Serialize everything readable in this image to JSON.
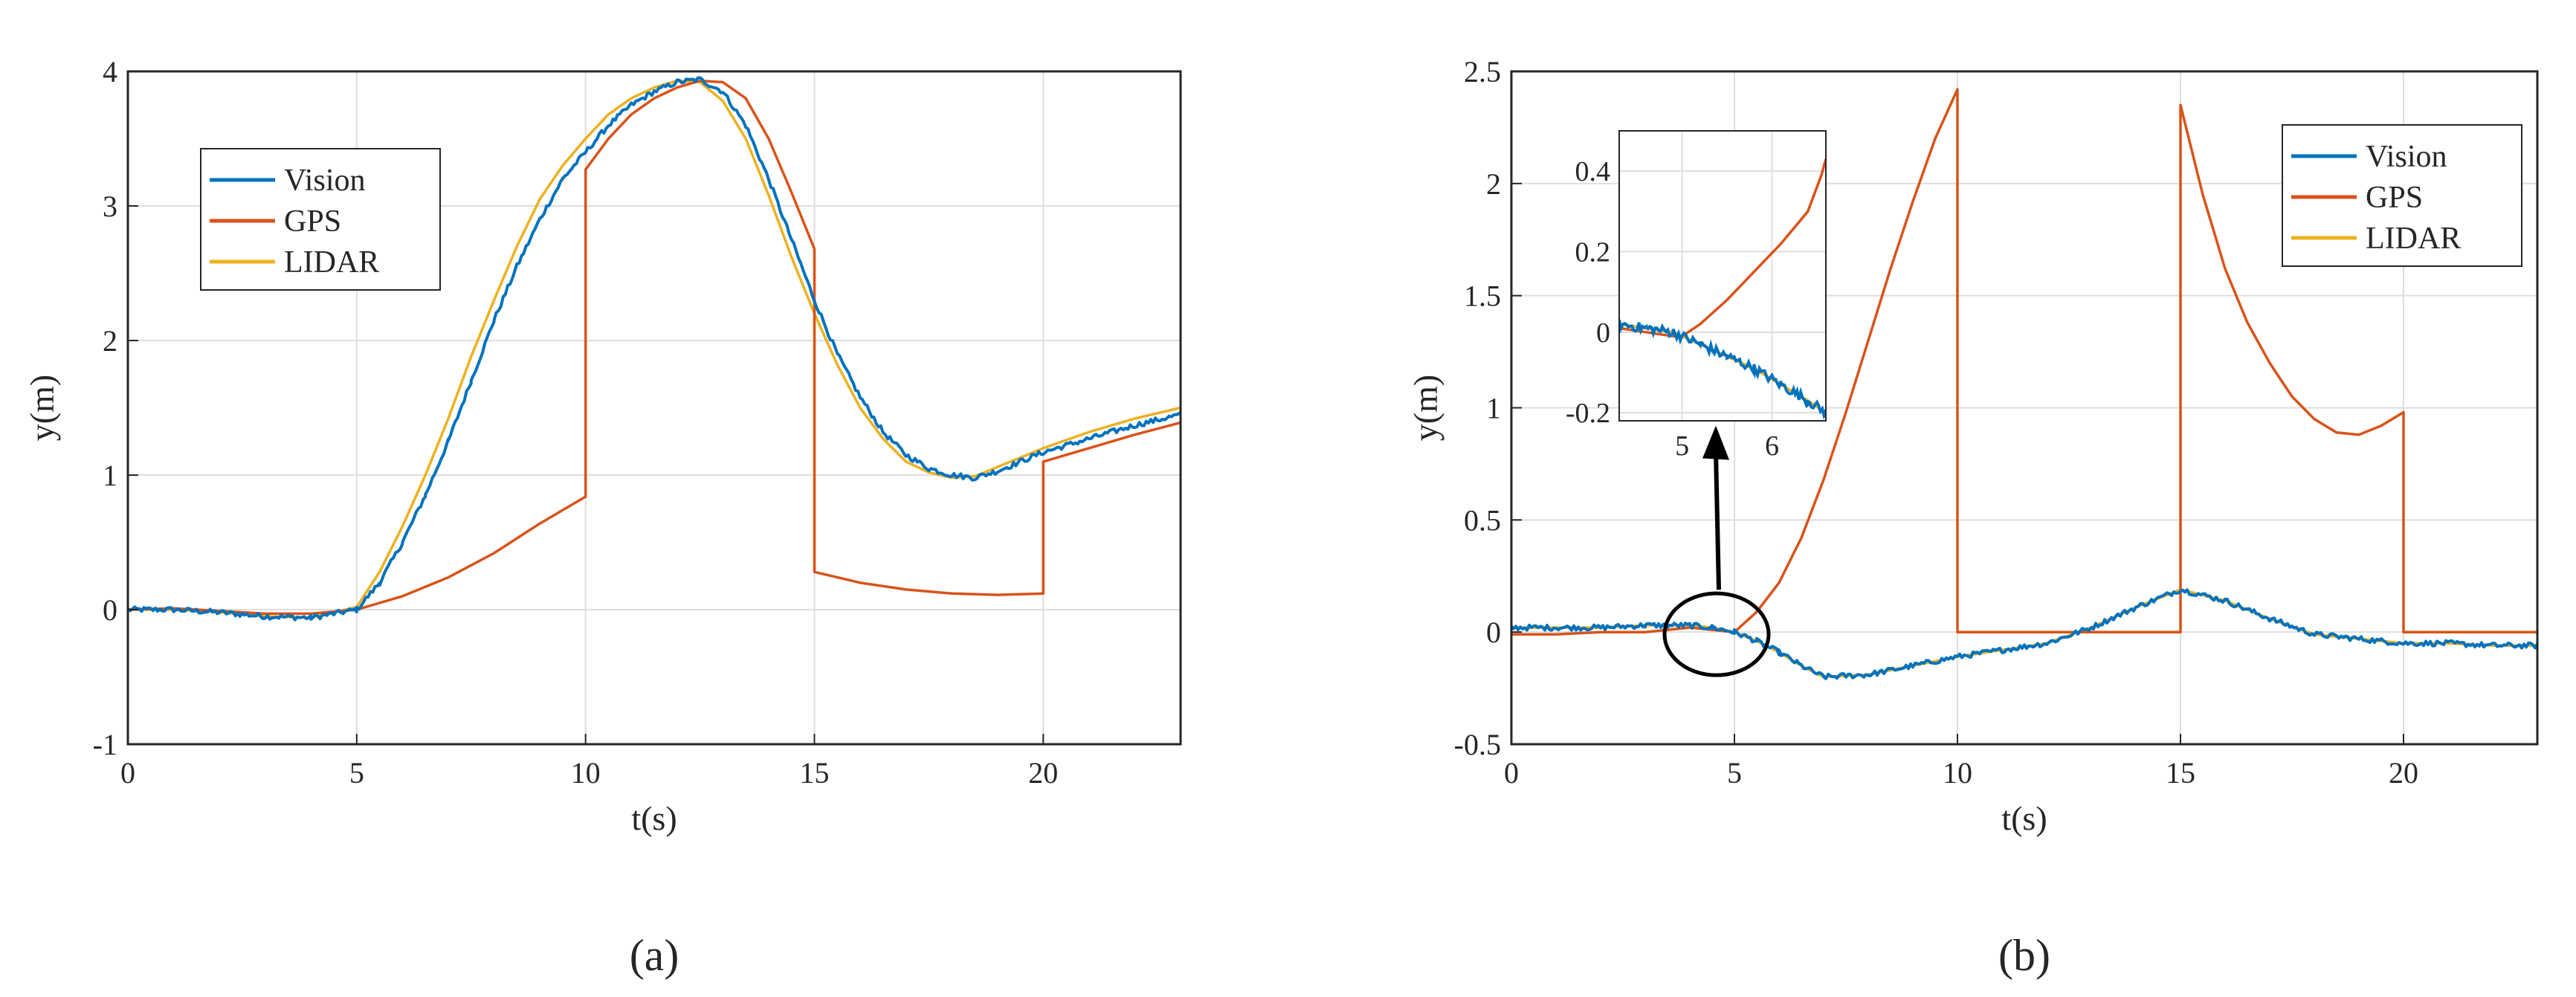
{
  "chart_data": [
    {
      "type": "line",
      "panel_label": "(a)",
      "xlabel": "t(s)",
      "ylabel": "y(m)",
      "xlim": [
        0,
        23
      ],
      "ylim": [
        -1,
        4
      ],
      "xticks": [
        0,
        5,
        10,
        15,
        20
      ],
      "yticks": [
        -1,
        0,
        1,
        2,
        3,
        4
      ],
      "grid": true,
      "legend": "upper-left",
      "series": [
        {
          "name": "Vision",
          "color": "#0072BD",
          "noise": 0.02,
          "x": [
            0,
            1,
            2,
            3,
            4,
            5,
            5.5,
            6,
            6.5,
            7,
            7.5,
            8,
            8.5,
            9,
            9.5,
            10,
            10.5,
            11,
            11.5,
            12,
            12.5,
            13,
            13.5,
            14,
            14.5,
            15,
            15.5,
            16,
            16.5,
            17,
            17.5,
            18,
            18.5,
            19,
            19.5,
            20,
            21,
            22,
            23
          ],
          "y": [
            0,
            0,
            -0.02,
            -0.05,
            -0.06,
            0,
            0.2,
            0.5,
            0.85,
            1.25,
            1.7,
            2.15,
            2.55,
            2.9,
            3.2,
            3.4,
            3.6,
            3.75,
            3.85,
            3.92,
            3.94,
            3.85,
            3.6,
            3.2,
            2.75,
            2.3,
            1.9,
            1.58,
            1.32,
            1.15,
            1.05,
            1.0,
            0.98,
            1.03,
            1.1,
            1.17,
            1.27,
            1.37,
            1.45
          ]
        },
        {
          "name": "GPS",
          "color": "#D95319",
          "noise": 0,
          "x": [
            0,
            1,
            2,
            3,
            4,
            5,
            6,
            7,
            8,
            9,
            10,
            10,
            10.5,
            11,
            11.5,
            12,
            12.5,
            13,
            13.5,
            14,
            14.5,
            15,
            15,
            16,
            17,
            18,
            19,
            20,
            20,
            21,
            22,
            23
          ],
          "y": [
            0,
            0.01,
            -0.01,
            -0.03,
            -0.03,
            0,
            0.1,
            0.24,
            0.42,
            0.64,
            0.84,
            3.27,
            3.5,
            3.68,
            3.8,
            3.88,
            3.93,
            3.92,
            3.8,
            3.5,
            3.1,
            2.68,
            0.28,
            0.2,
            0.15,
            0.12,
            0.11,
            0.12,
            1.1,
            1.2,
            1.3,
            1.39
          ]
        },
        {
          "name": "LIDAR",
          "color": "#EDB120",
          "noise": 0,
          "x": [
            0,
            1,
            2,
            3,
            4,
            5,
            5.5,
            6,
            6.5,
            7,
            7.5,
            8,
            8.5,
            9,
            9.5,
            10,
            10.5,
            11,
            11.5,
            12,
            12.5,
            13,
            13.5,
            14,
            14.5,
            15,
            15.5,
            16,
            16.5,
            17,
            17.5,
            18,
            18.5,
            19,
            19.5,
            20,
            21,
            22,
            23
          ],
          "y": [
            0,
            0,
            -0.02,
            -0.05,
            -0.06,
            0.02,
            0.28,
            0.62,
            1.0,
            1.42,
            1.88,
            2.3,
            2.7,
            3.05,
            3.3,
            3.5,
            3.68,
            3.8,
            3.88,
            3.93,
            3.92,
            3.78,
            3.5,
            3.08,
            2.62,
            2.2,
            1.82,
            1.5,
            1.27,
            1.1,
            1.02,
            0.98,
            0.99,
            1.06,
            1.13,
            1.2,
            1.32,
            1.42,
            1.5
          ]
        }
      ]
    },
    {
      "type": "line",
      "panel_label": "(b)",
      "xlabel": "t(s)",
      "ylabel": "y(m)",
      "xlim": [
        0,
        23
      ],
      "ylim": [
        -0.5,
        2.5
      ],
      "xticks": [
        0,
        5,
        10,
        15,
        20
      ],
      "yticks": [
        -0.5,
        0,
        0.5,
        1,
        1.5,
        2,
        2.5
      ],
      "ytick_labels": [
        "-0.5",
        "0",
        "0.5",
        "1",
        "1.5",
        "2",
        "2.5"
      ],
      "grid": true,
      "legend": "upper-right",
      "series": [
        {
          "name": "Vision",
          "color": "#0072BD",
          "noise": 0.012,
          "x": [
            0,
            1,
            2,
            3,
            4,
            4.5,
            5,
            5.5,
            6,
            6.5,
            7,
            8,
            9,
            10,
            11,
            12,
            13,
            14,
            15,
            16,
            17,
            18,
            19,
            20,
            21,
            22,
            23
          ],
          "y": [
            0.02,
            0.02,
            0.02,
            0.03,
            0.03,
            0.02,
            0,
            -0.04,
            -0.09,
            -0.15,
            -0.2,
            -0.19,
            -0.15,
            -0.11,
            -0.08,
            -0.05,
            0.02,
            0.11,
            0.19,
            0.14,
            0.06,
            -0.01,
            -0.03,
            -0.05,
            -0.05,
            -0.06,
            -0.06
          ]
        },
        {
          "name": "GPS",
          "color": "#D95319",
          "noise": 0,
          "x": [
            0,
            1,
            2,
            3,
            4,
            5,
            5.5,
            6,
            6.5,
            7,
            7.5,
            8,
            8.5,
            9,
            9.5,
            10,
            10,
            11,
            12,
            13,
            14,
            15,
            15,
            15.5,
            16,
            16.5,
            17,
            17.5,
            18,
            18.5,
            19,
            19.5,
            20,
            20,
            21,
            22,
            23
          ],
          "y": [
            -0.01,
            -0.01,
            0,
            0,
            0.02,
            0,
            0.09,
            0.22,
            0.42,
            0.68,
            0.98,
            1.3,
            1.62,
            1.92,
            2.2,
            2.42,
            0,
            0,
            0,
            0,
            0,
            0,
            2.35,
            1.95,
            1.62,
            1.38,
            1.2,
            1.05,
            0.95,
            0.89,
            0.88,
            0.92,
            0.98,
            0,
            0,
            0,
            0
          ]
        },
        {
          "name": "LIDAR",
          "color": "#EDB120",
          "noise": 0,
          "x": [
            0,
            1,
            2,
            3,
            4,
            4.5,
            5,
            5.5,
            6,
            6.5,
            7,
            8,
            9,
            10,
            11,
            12,
            13,
            14,
            15,
            16,
            17,
            18,
            19,
            20,
            21,
            22,
            23
          ],
          "y": [
            0.02,
            0.02,
            0.02,
            0.03,
            0.03,
            0.02,
            0,
            -0.04,
            -0.09,
            -0.15,
            -0.2,
            -0.19,
            -0.15,
            -0.11,
            -0.08,
            -0.05,
            0.02,
            0.11,
            0.19,
            0.14,
            0.06,
            -0.01,
            -0.03,
            -0.05,
            -0.05,
            -0.06,
            -0.06
          ]
        }
      ],
      "inset": {
        "xlim": [
          4.3,
          6.6
        ],
        "ylim": [
          -0.22,
          0.5
        ],
        "xticks": [
          5,
          6
        ],
        "yticks": [
          -0.2,
          0,
          0.2,
          0.4
        ],
        "ytick_labels": [
          "-0.2",
          "0",
          "0.2",
          "0.4"
        ],
        "series": [
          {
            "name": "Vision",
            "color": "#0072BD",
            "noise": 0.012,
            "x": [
              4.3,
              4.6,
              4.9,
              5.2,
              5.5,
              5.8,
              6.1,
              6.4,
              6.6
            ],
            "y": [
              0.02,
              0.01,
              0.0,
              -0.03,
              -0.06,
              -0.09,
              -0.13,
              -0.17,
              -0.2
            ]
          },
          {
            "name": "GPS",
            "color": "#D95319",
            "noise": 0,
            "x": [
              4.3,
              4.6,
              4.9,
              5.0,
              5.2,
              5.5,
              5.8,
              6.1,
              6.4,
              6.55,
              6.6
            ],
            "y": [
              0.01,
              0.0,
              -0.01,
              -0.01,
              0.02,
              0.08,
              0.15,
              0.22,
              0.3,
              0.39,
              0.43
            ]
          },
          {
            "name": "LIDAR",
            "color": "#EDB120",
            "noise": 0,
            "x": [
              4.3,
              4.6,
              4.9,
              5.2,
              5.5,
              5.8,
              6.1,
              6.4,
              6.6
            ],
            "y": [
              0.02,
              0.01,
              0.0,
              -0.03,
              -0.06,
              -0.09,
              -0.13,
              -0.17,
              -0.2
            ]
          }
        ]
      },
      "annotation": {
        "type": "circle-arrow",
        "circle_at": [
          4.6,
          -0.01
        ],
        "arrow_from": [
          5.4,
          -0.01
        ],
        "arrow_to": [
          5.5,
          1.0
        ]
      }
    }
  ]
}
